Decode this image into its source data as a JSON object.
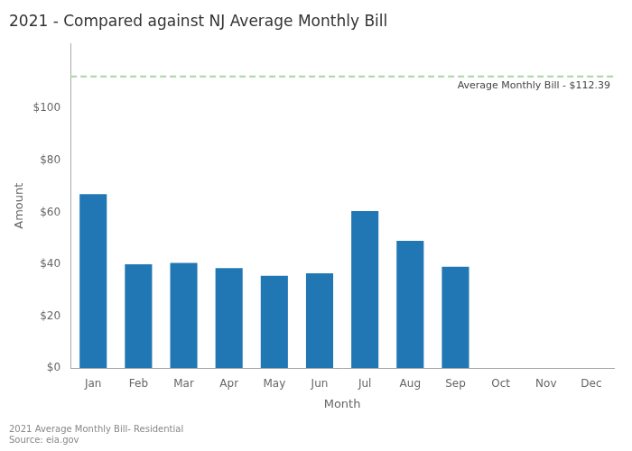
{
  "chart_data": {
    "type": "bar",
    "title": "2021 - Compared against NJ Average Monthly Bill",
    "categories": [
      "Jan",
      "Feb",
      "Mar",
      "Apr",
      "May",
      "Jun",
      "Jul",
      "Aug",
      "Sep",
      "Oct",
      "Nov",
      "Dec"
    ],
    "values": [
      67.0,
      40.0,
      40.5,
      38.5,
      35.5,
      36.5,
      60.5,
      49.0,
      39.0,
      0,
      0,
      0
    ],
    "color": "#2077b4",
    "xlabel": "Month",
    "ylabel": "Amount",
    "ylim": [
      0,
      125
    ],
    "yticks": [
      {
        "value": 0,
        "label": "$0"
      },
      {
        "value": 20,
        "label": "$20"
      },
      {
        "value": 40,
        "label": "$40"
      },
      {
        "value": 60,
        "label": "$60"
      },
      {
        "value": 80,
        "label": "$80"
      },
      {
        "value": 100,
        "label": "$100"
      }
    ],
    "grid": false,
    "annotations": [
      {
        "type": "hline",
        "y": 112.39,
        "label": "Average Monthly Bill - $112.39",
        "color": "#a8d5a2",
        "line_style": "dashed"
      }
    ],
    "footnote": "2021 Average Monthly Bill- Residential\nSource: eia.gov"
  }
}
